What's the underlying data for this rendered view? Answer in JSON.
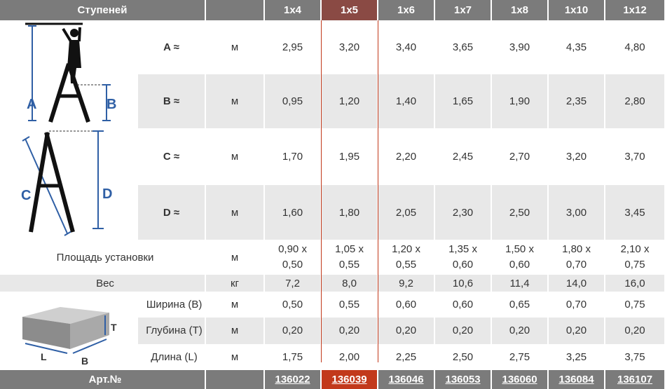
{
  "header": {
    "steps_label": "Ступеней",
    "sizes": [
      "1х4",
      "1х5",
      "1х6",
      "1х7",
      "1х8",
      "1х10",
      "1х12"
    ]
  },
  "rows": {
    "A": {
      "label": "A ≈",
      "unit": "м",
      "values": [
        "2,95",
        "3,20",
        "3,40",
        "3,65",
        "3,90",
        "4,35",
        "4,80"
      ]
    },
    "B": {
      "label": "B ≈",
      "unit": "м",
      "values": [
        "0,95",
        "1,20",
        "1,40",
        "1,65",
        "1,90",
        "2,35",
        "2,80"
      ]
    },
    "C": {
      "label": "C ≈",
      "unit": "м",
      "values": [
        "1,70",
        "1,95",
        "2,20",
        "2,45",
        "2,70",
        "3,20",
        "3,70"
      ]
    },
    "D": {
      "label": "D ≈",
      "unit": "м",
      "values": [
        "1,60",
        "1,80",
        "2,05",
        "2,30",
        "2,50",
        "3,00",
        "3,45"
      ]
    },
    "area": {
      "label": "Площадь установки",
      "unit": "м",
      "values_top": [
        "0,90 x",
        "1,05 x",
        "1,20 x",
        "1,35 x",
        "1,50 x",
        "1,80 x",
        "2,10 x"
      ],
      "values_bottom": [
        "0,50",
        "0,55",
        "0,55",
        "0,60",
        "0,60",
        "0,70",
        "0,75"
      ]
    },
    "weight": {
      "label": "Вес",
      "unit": "кг",
      "values": [
        "7,2",
        "8,0",
        "9,2",
        "10,6",
        "11,4",
        "14,0",
        "16,0"
      ]
    },
    "width": {
      "label": "Ширина (В)",
      "unit": "м",
      "values": [
        "0,50",
        "0,55",
        "0,60",
        "0,60",
        "0,65",
        "0,70",
        "0,75"
      ]
    },
    "depth": {
      "label": "Глубина (Т)",
      "unit": "м",
      "values": [
        "0,20",
        "0,20",
        "0,20",
        "0,20",
        "0,20",
        "0,20",
        "0,20"
      ]
    },
    "length": {
      "label": "Длина (L)",
      "unit": "м",
      "values": [
        "1,75",
        "2,00",
        "2,25",
        "2,50",
        "2,75",
        "3,25",
        "3,75"
      ]
    }
  },
  "footer": {
    "label": "Арт.№",
    "articles": [
      "136022",
      "136039",
      "136046",
      "136053",
      "136060",
      "136084",
      "136107"
    ]
  },
  "diagrams": {
    "ladder_open_letters": [
      "A",
      "B"
    ],
    "ladder_folded_letters": [
      "C",
      "D"
    ],
    "box_letters": [
      "T",
      "L",
      "B"
    ]
  },
  "colors": {
    "header_bg": "#7b7b7b",
    "row_grey": "#e8e8e8",
    "letter_blue": "#2f5fa5",
    "highlight_red": "#b5332a",
    "highlight_article_bg": "#c2391b"
  }
}
